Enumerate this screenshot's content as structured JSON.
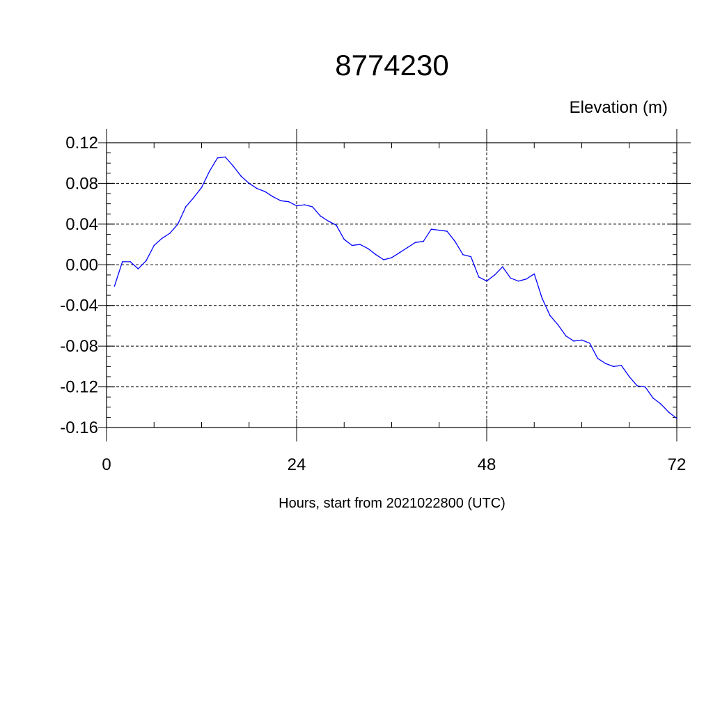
{
  "chart_data": {
    "type": "line",
    "title": "8774230",
    "ylabel": "Elevation (m)",
    "xlabel": "Hours, start from 2021022800 (UTC)",
    "xlim": [
      0,
      72
    ],
    "ylim": [
      -0.16,
      0.12
    ],
    "x_ticks": [
      "0",
      "24",
      "48",
      "72"
    ],
    "y_ticks": [
      "0.12",
      "0.08",
      "0.04",
      "0.00",
      "-0.04",
      "-0.08",
      "-0.12",
      "-0.16"
    ],
    "grid": true,
    "line_color": "#0000ff",
    "series": [
      {
        "x": [
          1,
          2,
          3,
          4,
          5,
          6,
          7,
          8,
          9,
          10,
          11,
          12,
          13,
          14,
          15,
          16,
          17,
          18,
          19,
          20,
          21,
          22,
          23,
          24,
          25,
          26,
          27,
          28,
          29,
          30,
          31,
          32,
          33,
          34,
          35,
          36,
          37,
          38,
          39,
          40,
          41,
          42,
          43,
          44,
          45,
          46,
          47,
          48,
          49,
          50,
          51,
          52,
          53,
          54,
          55,
          56,
          57,
          58,
          59,
          60,
          61,
          62,
          63,
          64,
          65,
          66,
          67,
          68,
          69,
          70,
          71,
          72
        ],
        "values": [
          -0.021,
          0.003,
          0.003,
          -0.004,
          0.004,
          0.019,
          0.026,
          0.031,
          0.04,
          0.057,
          0.066,
          0.076,
          0.092,
          0.105,
          0.106,
          0.097,
          0.087,
          0.08,
          0.075,
          0.072,
          0.067,
          0.063,
          0.062,
          0.058,
          0.059,
          0.057,
          0.048,
          0.043,
          0.039,
          0.025,
          0.019,
          0.02,
          0.016,
          0.01,
          0.005,
          0.007,
          0.012,
          0.017,
          0.022,
          0.023,
          0.035,
          0.034,
          0.033,
          0.023,
          0.01,
          0.008,
          -0.012,
          -0.016,
          -0.01,
          -0.002,
          -0.013,
          -0.016,
          -0.014,
          -0.009,
          -0.033,
          -0.05,
          -0.059,
          -0.07,
          -0.075,
          -0.074,
          -0.077,
          -0.092,
          -0.097,
          -0.1,
          -0.099,
          -0.11,
          -0.119,
          -0.12,
          -0.131,
          -0.137,
          -0.145,
          -0.151
        ]
      }
    ]
  }
}
